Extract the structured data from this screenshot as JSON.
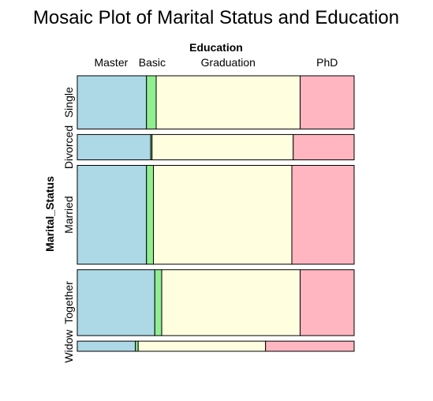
{
  "chart_data": {
    "type": "mosaic",
    "title": "Mosaic Plot of Marital Status and Education",
    "x_variable": "Education",
    "y_variable": "Marital_Status",
    "columns": [
      "Master",
      "Basic",
      "Graduation",
      "PhD"
    ],
    "rows": [
      {
        "name": "Single",
        "proportion": 0.21,
        "shares": [
          0.25,
          0.035,
          0.52,
          0.195
        ]
      },
      {
        "name": "Divorced",
        "proportion": 0.1,
        "shares": [
          0.265,
          0.005,
          0.51,
          0.22
        ]
      },
      {
        "name": "Married",
        "proportion": 0.39,
        "shares": [
          0.25,
          0.025,
          0.5,
          0.225
        ]
      },
      {
        "name": "Together",
        "proportion": 0.26,
        "shares": [
          0.28,
          0.025,
          0.5,
          0.195
        ]
      },
      {
        "name": "Widow",
        "proportion": 0.04,
        "shares": [
          0.21,
          0.01,
          0.46,
          0.32
        ]
      }
    ],
    "colors": {
      "Master": "#add8e6",
      "Basic": "#90ee90",
      "Graduation": "#ffffe0",
      "PhD": "#ffb6c1"
    }
  }
}
